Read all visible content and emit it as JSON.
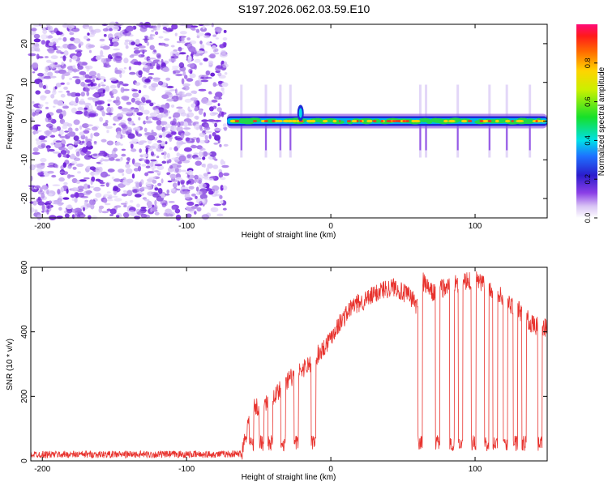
{
  "title": "S197.2026.062.03.59.E10",
  "chart_data": [
    {
      "type": "heatmap",
      "title": "S197.2026.062.03.59.E10",
      "xlabel": "Height of straight line (km)",
      "ylabel": "Frequency (Hz)",
      "xlim": [
        -208,
        150
      ],
      "ylim": [
        -25,
        25
      ],
      "xticks": [
        -200,
        -100,
        0,
        100
      ],
      "yticks": [
        -20,
        -10,
        0,
        10,
        20
      ],
      "noise_region_x": [
        -208,
        -72
      ],
      "signal_start_x": -72,
      "signal_band_freq": [
        -3,
        3
      ],
      "colorbar": {
        "label": "Normalized spectral amplitude",
        "ticks": [
          "0.0",
          "0.2",
          "0.4",
          "0.6",
          "0.8"
        ],
        "range": [
          0,
          1
        ]
      }
    },
    {
      "type": "line",
      "xlabel": "Height of straight line (km)",
      "ylabel": "SNR (10 * v/v)",
      "xlim": [
        -208,
        150
      ],
      "ylim": [
        0,
        600
      ],
      "xticks": [
        -200,
        -100,
        0,
        100
      ],
      "yticks": [
        0,
        200,
        400,
        600
      ],
      "series": [
        {
          "name": "SNR",
          "color": "#e8332e",
          "x": [
            -208,
            -180,
            -150,
            -120,
            -90,
            -62,
            -55,
            -45,
            -35,
            -25,
            -15,
            -5,
            5,
            15,
            25,
            35,
            45,
            50,
            55,
            60,
            63,
            70,
            80,
            90,
            100,
            110,
            120,
            130,
            140,
            150
          ],
          "y": [
            20,
            20,
            20,
            20,
            20,
            22,
            160,
            180,
            220,
            270,
            300,
            350,
            420,
            480,
            500,
            530,
            540,
            520,
            510,
            480,
            560,
            520,
            540,
            550,
            560,
            540,
            500,
            470,
            420,
            410
          ]
        }
      ]
    }
  ],
  "colors": {
    "series_red": "#e8332e",
    "noise_purple": "#7b2ee0"
  }
}
